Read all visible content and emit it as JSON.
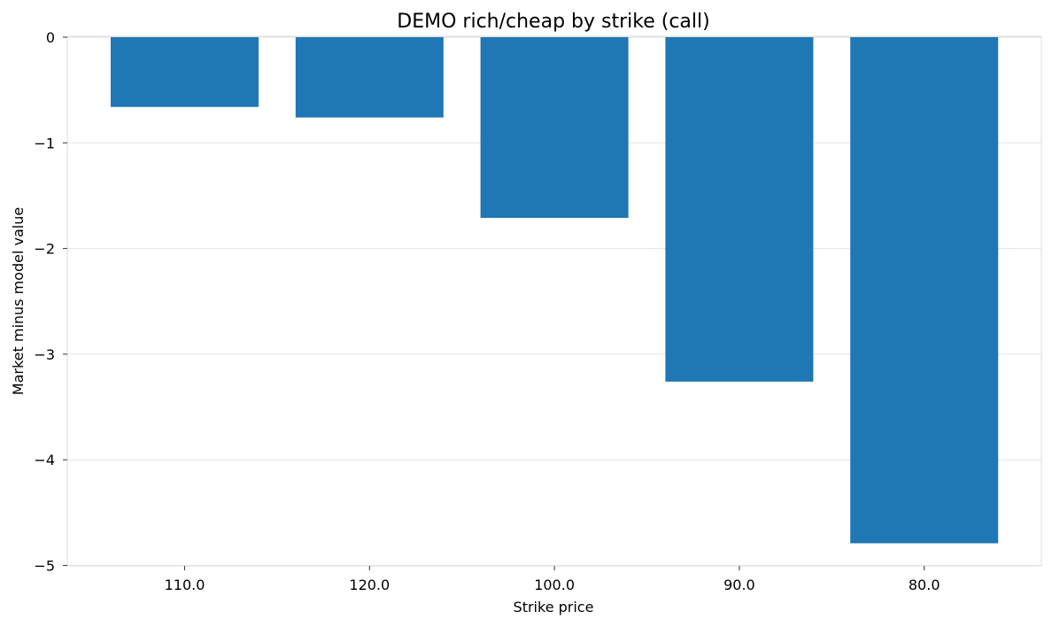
{
  "chart_data": {
    "type": "bar",
    "title": "DEMO rich/cheap by strike (call)",
    "xlabel": "Strike price",
    "ylabel": "Market minus model value",
    "categories": [
      "110.0",
      "120.0",
      "100.0",
      "90.0",
      "80.0"
    ],
    "values": [
      -0.66,
      -0.76,
      -1.71,
      -3.26,
      -4.79
    ],
    "ylim": [
      -5.02,
      0
    ],
    "yticks": [
      0,
      -1,
      -2,
      -3,
      -4,
      -5
    ],
    "ytick_labels": [
      "0",
      "−1",
      "−2",
      "−3",
      "−4",
      "−5"
    ],
    "grid": true,
    "bar_color": "#1f77b4"
  }
}
